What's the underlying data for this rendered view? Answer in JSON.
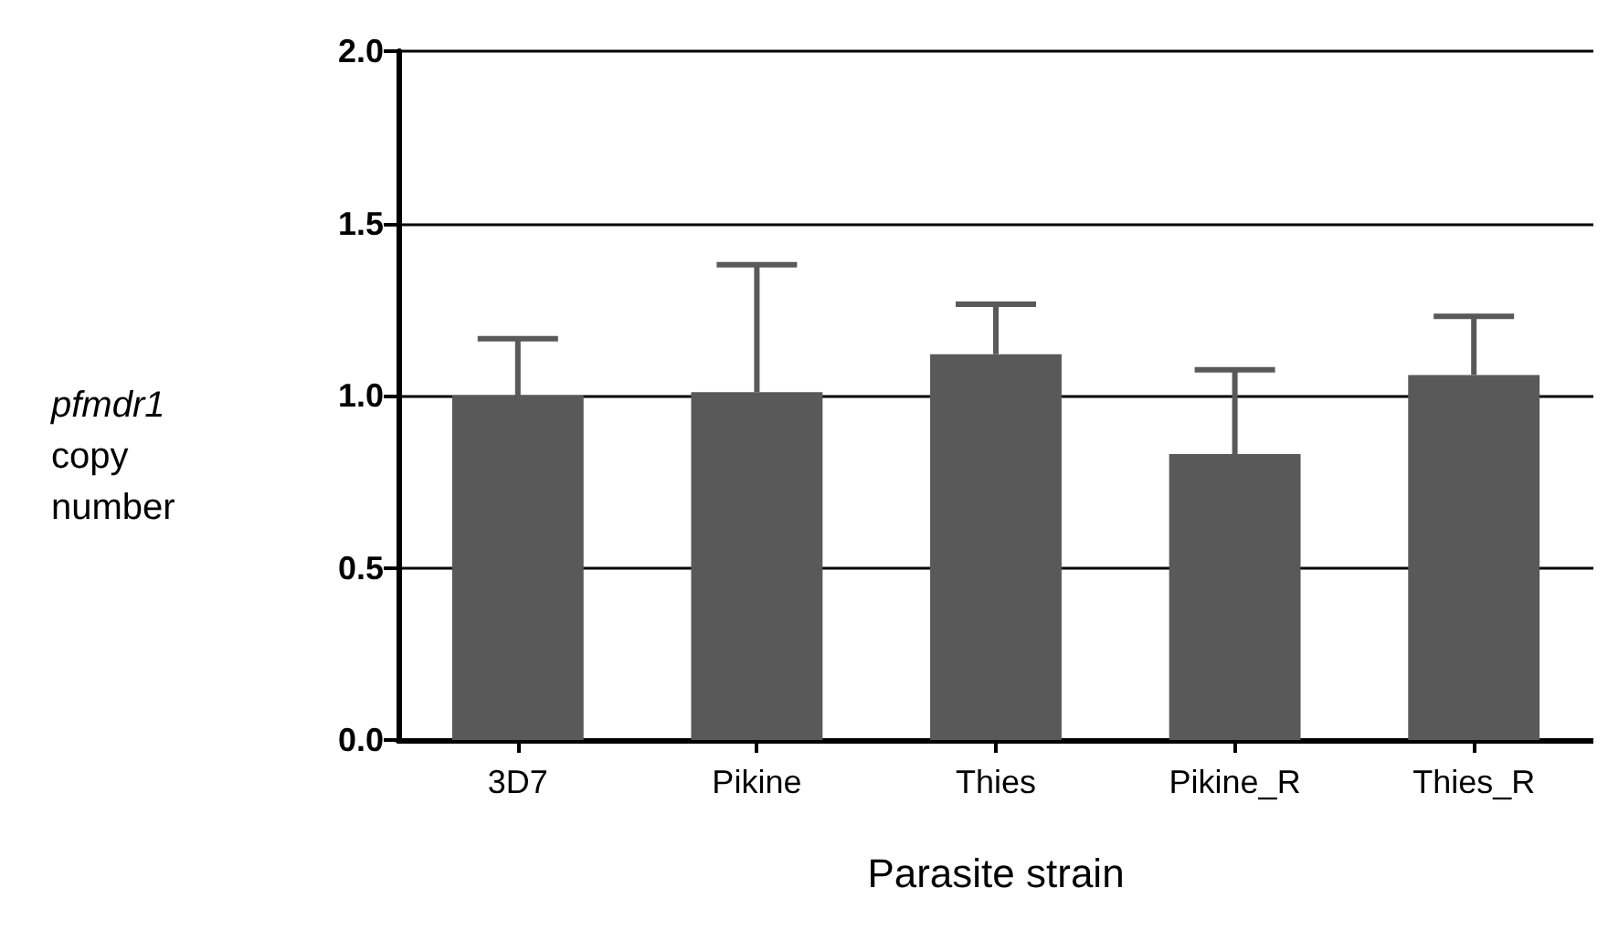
{
  "chart_data": {
    "type": "bar",
    "xlabel": "Parasite strain",
    "ylabel": "pfmdr1 copy number",
    "categories": [
      "3D7",
      "Pikine",
      "Thies",
      "Pikine_R",
      "Thies_R"
    ],
    "values": [
      1.0,
      1.01,
      1.12,
      0.83,
      1.06
    ],
    "errors": [
      [
        1.0,
        1.165
      ],
      [
        1.01,
        1.38
      ],
      [
        1.12,
        1.265
      ],
      [
        0.83,
        1.075
      ],
      [
        1.06,
        1.23
      ]
    ],
    "color": "#595959",
    "ylim": [
      0,
      2
    ],
    "yticks": [
      {
        "value": 0,
        "label": "0.0"
      },
      0.5,
      {
        "value": 1,
        "label": "1.0"
      },
      1.5,
      {
        "value": 2,
        "label": "2.0"
      }
    ],
    "grid": "y"
  }
}
